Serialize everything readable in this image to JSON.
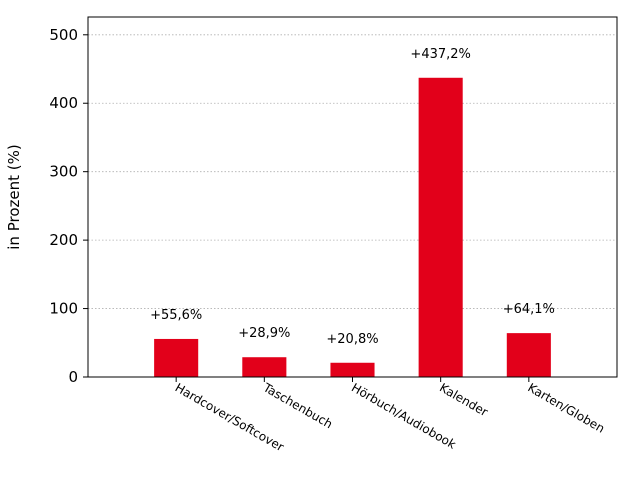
{
  "chart_data": {
    "type": "bar",
    "y_label": "in Prozent (%)",
    "categories": [
      "Hardcover/Softcover",
      "Taschenbuch",
      "Hörbuch/Audiobook",
      "Kalender",
      "Karten/Globen"
    ],
    "values": [
      55.6,
      28.9,
      20.8,
      437.2,
      64.1
    ],
    "value_labels": [
      "+55,6%",
      "+28,9%",
      "+20,8%",
      "+437,2%",
      "+64,1%"
    ],
    "color": "#e2001a",
    "ylim": [
      0,
      526
    ],
    "yticks": [
      0,
      100,
      200,
      300,
      400,
      500
    ],
    "grid": true
  }
}
